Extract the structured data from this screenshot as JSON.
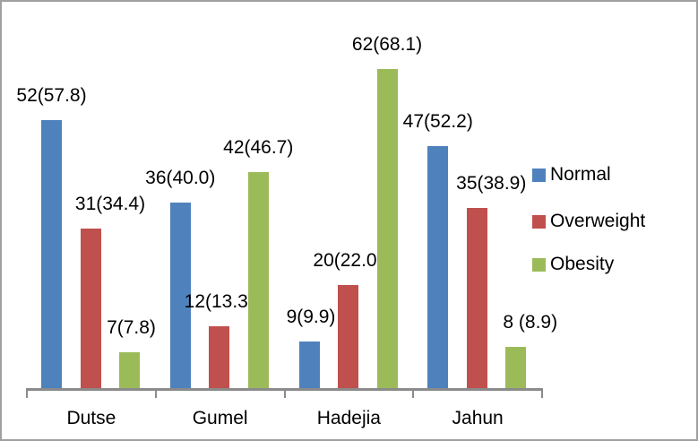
{
  "chart_data": {
    "type": "bar",
    "title": "",
    "xlabel": "",
    "ylabel": "",
    "categories": [
      "Dutse",
      "Gumel",
      "Hadejia",
      "Jahun"
    ],
    "series": [
      {
        "name": "Normal",
        "color": "#4F81BD",
        "values": [
          52,
          36,
          9,
          47
        ],
        "data_labels": [
          "52(57.8)",
          "36(40.0)",
          "9(9.9)",
          "47(52.2)"
        ],
        "label_dx": [
          0,
          0,
          2,
          0
        ]
      },
      {
        "name": "Overweight",
        "color": "#C0504D",
        "values": [
          31,
          12,
          20,
          35
        ],
        "data_labels": [
          "31(34.4)",
          "12(13.3)",
          "20(22.0)",
          "35(38.9)"
        ],
        "label_dx": [
          22,
          0,
          0,
          16
        ]
      },
      {
        "name": "Obesity",
        "color": "#9BBB59",
        "values": [
          7,
          42,
          62,
          8
        ],
        "data_labels": [
          "7(7.8)",
          "42(46.7)",
          "62(68.1)",
          "8 (8.9)"
        ],
        "label_dx": [
          2,
          0,
          0,
          16
        ]
      }
    ],
    "ylim": [
      0,
      75
    ],
    "grid": false,
    "y_axis_visible": false,
    "legend_position": "right",
    "data_label_meaning": "count(percent)",
    "axis_color": "#8B8B8B",
    "text_color": "#000000",
    "background_color": "#FFFFFF",
    "frame_border_color": "#A0A0A0"
  }
}
